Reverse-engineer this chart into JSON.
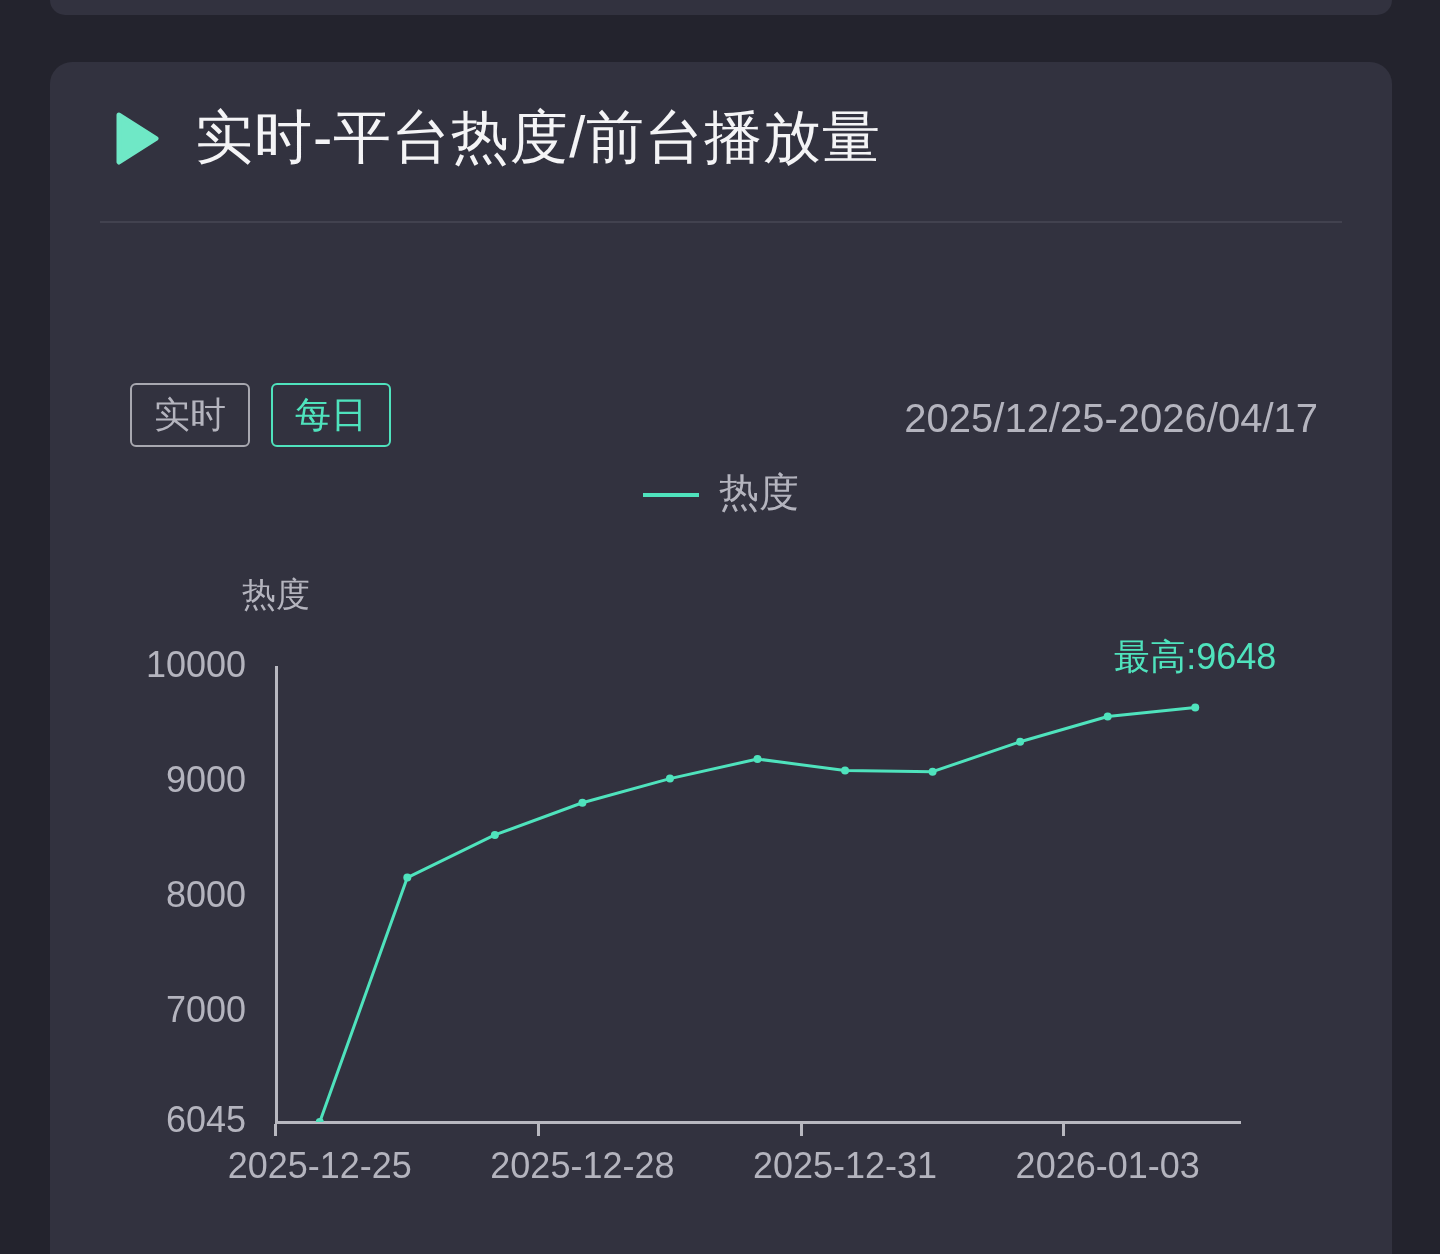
{
  "chart_data": {
    "type": "line",
    "title": "实时-平台热度/前台播放量",
    "ylabel": "热度",
    "categories": [
      "2025-12-25",
      null,
      null,
      "2025-12-28",
      null,
      null,
      "2025-12-31",
      null,
      null,
      "2026-01-03",
      null
    ],
    "series": [
      {
        "name": "热度",
        "color": "#4fe3bd",
        "values": [
          6045,
          8170,
          8540,
          8820,
          9030,
          9200,
          9100,
          9090,
          9350,
          9570,
          9648
        ]
      }
    ],
    "ylim": [
      6045,
      10000
    ],
    "yticks": [
      6045,
      7000,
      8000,
      9000,
      10000
    ],
    "grid": false,
    "legend": "top",
    "marker": "circle",
    "line_style": "solid",
    "annotations": [
      "实时",
      "每日",
      "2025/12/25-2026/04/17",
      {
        "text": "最高:9648",
        "y": 9648
      }
    ]
  }
}
